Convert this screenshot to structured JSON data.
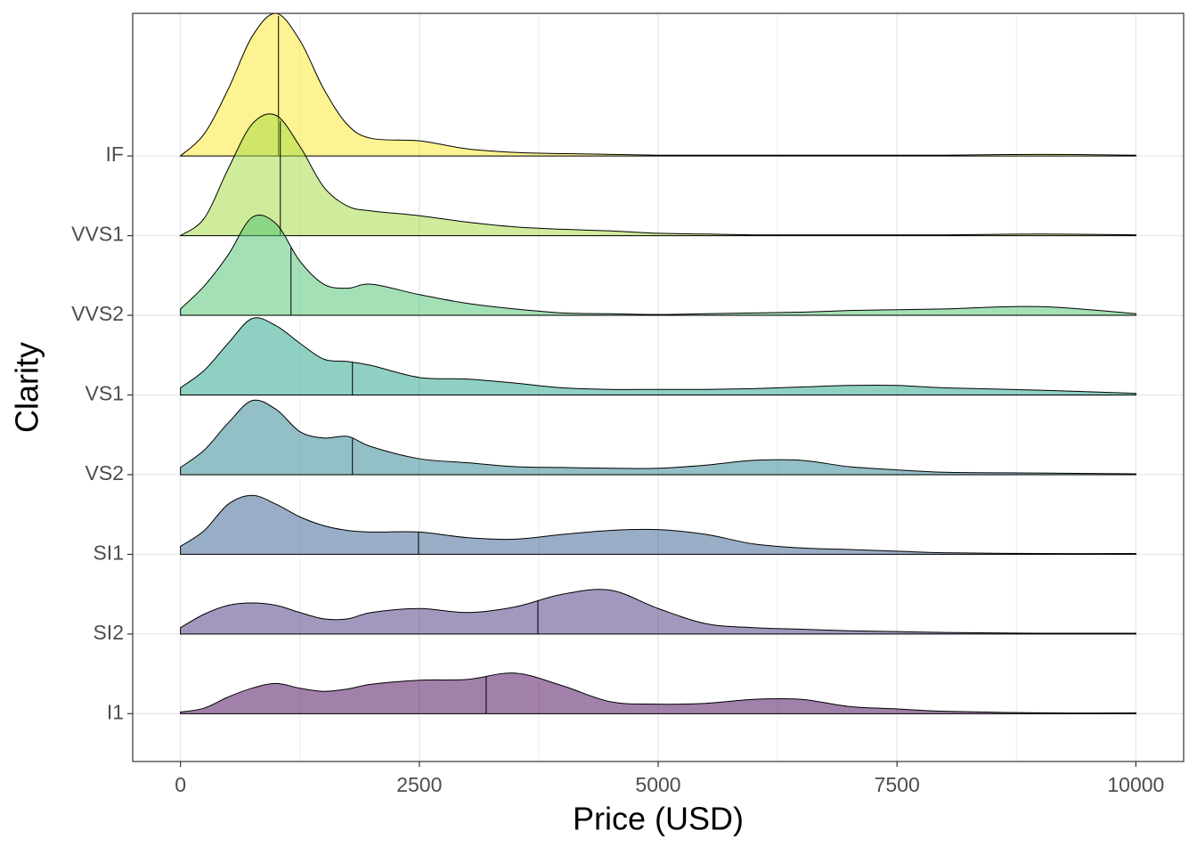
{
  "chart_data": {
    "type": "ridgeline",
    "x_label": "Price (USD)",
    "y_label": "Clarity",
    "xlim": [
      -500,
      10500
    ],
    "xticks": [
      0,
      2500,
      5000,
      7500,
      10000
    ],
    "x_minor_ticks": [
      1250,
      3750,
      6250,
      8750
    ],
    "ylim": [
      -0.6,
      8.79
    ],
    "grid": true,
    "opacity": 0.5,
    "x": [
      0,
      250,
      500,
      750,
      1000,
      1250,
      1500,
      1750,
      2000,
      2500,
      3000,
      3500,
      4000,
      4500,
      5000,
      5500,
      6000,
      6500,
      7000,
      7500,
      8000,
      9000,
      10000
    ],
    "series": [
      {
        "name": "I1",
        "color": "#440154",
        "median": 3200,
        "values": [
          0.02,
          0.07,
          0.21,
          0.32,
          0.38,
          0.32,
          0.28,
          0.31,
          0.37,
          0.42,
          0.43,
          0.51,
          0.35,
          0.15,
          0.12,
          0.13,
          0.18,
          0.18,
          0.09,
          0.06,
          0.03,
          0.01,
          0.01
        ]
      },
      {
        "name": "SI2",
        "color": "#46327e",
        "median": 3741,
        "values": [
          0.08,
          0.25,
          0.36,
          0.39,
          0.36,
          0.27,
          0.19,
          0.19,
          0.27,
          0.32,
          0.27,
          0.34,
          0.5,
          0.55,
          0.32,
          0.13,
          0.08,
          0.06,
          0.04,
          0.03,
          0.02,
          0.01,
          0.01
        ]
      },
      {
        "name": "SI1",
        "color": "#365c8d",
        "median": 2491,
        "values": [
          0.1,
          0.3,
          0.63,
          0.74,
          0.63,
          0.47,
          0.36,
          0.3,
          0.28,
          0.28,
          0.21,
          0.19,
          0.25,
          0.3,
          0.31,
          0.25,
          0.13,
          0.08,
          0.06,
          0.04,
          0.02,
          0.01,
          0.01
        ]
      },
      {
        "name": "VS2",
        "color": "#277f8e",
        "median": 1800,
        "values": [
          0.09,
          0.31,
          0.65,
          0.93,
          0.82,
          0.54,
          0.46,
          0.48,
          0.35,
          0.2,
          0.15,
          0.1,
          0.09,
          0.08,
          0.08,
          0.12,
          0.18,
          0.18,
          0.1,
          0.06,
          0.03,
          0.02,
          0.01
        ]
      },
      {
        "name": "VS1",
        "color": "#1fa187",
        "median": 1800,
        "values": [
          0.09,
          0.31,
          0.65,
          0.96,
          0.87,
          0.65,
          0.45,
          0.42,
          0.37,
          0.22,
          0.2,
          0.15,
          0.09,
          0.07,
          0.07,
          0.07,
          0.08,
          0.1,
          0.12,
          0.12,
          0.09,
          0.06,
          0.02
        ]
      },
      {
        "name": "VVS2",
        "color": "#4ac16d",
        "median": 1157,
        "values": [
          0.08,
          0.37,
          0.76,
          1.23,
          1.15,
          0.68,
          0.39,
          0.34,
          0.39,
          0.26,
          0.15,
          0.08,
          0.03,
          0.02,
          0.01,
          0.02,
          0.03,
          0.04,
          0.06,
          0.07,
          0.08,
          0.11,
          0.02
        ]
      },
      {
        "name": "VVS1",
        "color": "#a0da39",
        "median": 1045,
        "values": [
          0,
          0.22,
          0.84,
          1.4,
          1.51,
          1.12,
          0.61,
          0.37,
          0.31,
          0.25,
          0.17,
          0.11,
          0.08,
          0.06,
          0.03,
          0.02,
          0.01,
          0.01,
          0.01,
          0.01,
          0.01,
          0.02,
          0.01
        ]
      },
      {
        "name": "IF",
        "color": "#fde725",
        "median": 1026,
        "values": [
          0,
          0.28,
          0.84,
          1.5,
          1.79,
          1.45,
          0.84,
          0.39,
          0.22,
          0.19,
          0.09,
          0.045,
          0.03,
          0.02,
          0.01,
          0.01,
          0.01,
          0.01,
          0.01,
          0.01,
          0.01,
          0.02,
          0.01
        ]
      }
    ]
  }
}
